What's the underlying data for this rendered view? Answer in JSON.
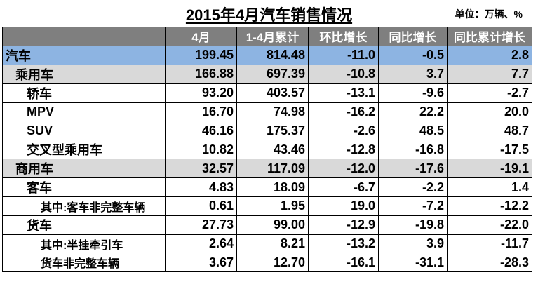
{
  "title": "2015年4月汽车销售情况",
  "unit": "单位：万辆、%",
  "headers": [
    "",
    "4月",
    "1-4月累计",
    "环比增长",
    "同比增长",
    "同比累计增长"
  ],
  "rows": [
    {
      "label": "汽车",
      "c1": "199.45",
      "c2": "814.48",
      "c3": "-11.0",
      "c4": "-0.5",
      "c5": "2.8"
    },
    {
      "label": "乘用车",
      "c1": "166.88",
      "c2": "697.39",
      "c3": "-10.8",
      "c4": "3.7",
      "c5": "7.7"
    },
    {
      "label": "轿车",
      "c1": "93.20",
      "c2": "403.57",
      "c3": "-13.1",
      "c4": "-9.6",
      "c5": "-2.7"
    },
    {
      "label": "MPV",
      "c1": "16.70",
      "c2": "74.98",
      "c3": "-16.2",
      "c4": "22.2",
      "c5": "20.0"
    },
    {
      "label": "SUV",
      "c1": "46.16",
      "c2": "175.37",
      "c3": "-2.6",
      "c4": "48.5",
      "c5": "48.7"
    },
    {
      "label": "交叉型乘用车",
      "c1": "10.82",
      "c2": "43.46",
      "c3": "-12.8",
      "c4": "-16.8",
      "c5": "-17.5"
    },
    {
      "label": "商用车",
      "c1": "32.57",
      "c2": "117.09",
      "c3": "-12.0",
      "c4": "-17.6",
      "c5": "-19.1"
    },
    {
      "label": "客车",
      "c1": "4.83",
      "c2": "18.09",
      "c3": "-6.7",
      "c4": "-2.2",
      "c5": "1.4"
    },
    {
      "label": "其中:客车非完整车辆",
      "c1": "0.61",
      "c2": "1.95",
      "c3": "19.0",
      "c4": "-7.2",
      "c5": "-12.2"
    },
    {
      "label": "货车",
      "c1": "27.73",
      "c2": "99.00",
      "c3": "-12.9",
      "c4": "-19.8",
      "c5": "-22.0"
    },
    {
      "label": "其中:半挂牵引车",
      "c1": "2.64",
      "c2": "8.21",
      "c3": "-13.2",
      "c4": "3.9",
      "c5": "-11.7"
    },
    {
      "label": "货车非完整车辆",
      "c1": "3.67",
      "c2": "12.70",
      "c3": "-16.1",
      "c4": "-31.1",
      "c5": "-28.3"
    }
  ]
}
